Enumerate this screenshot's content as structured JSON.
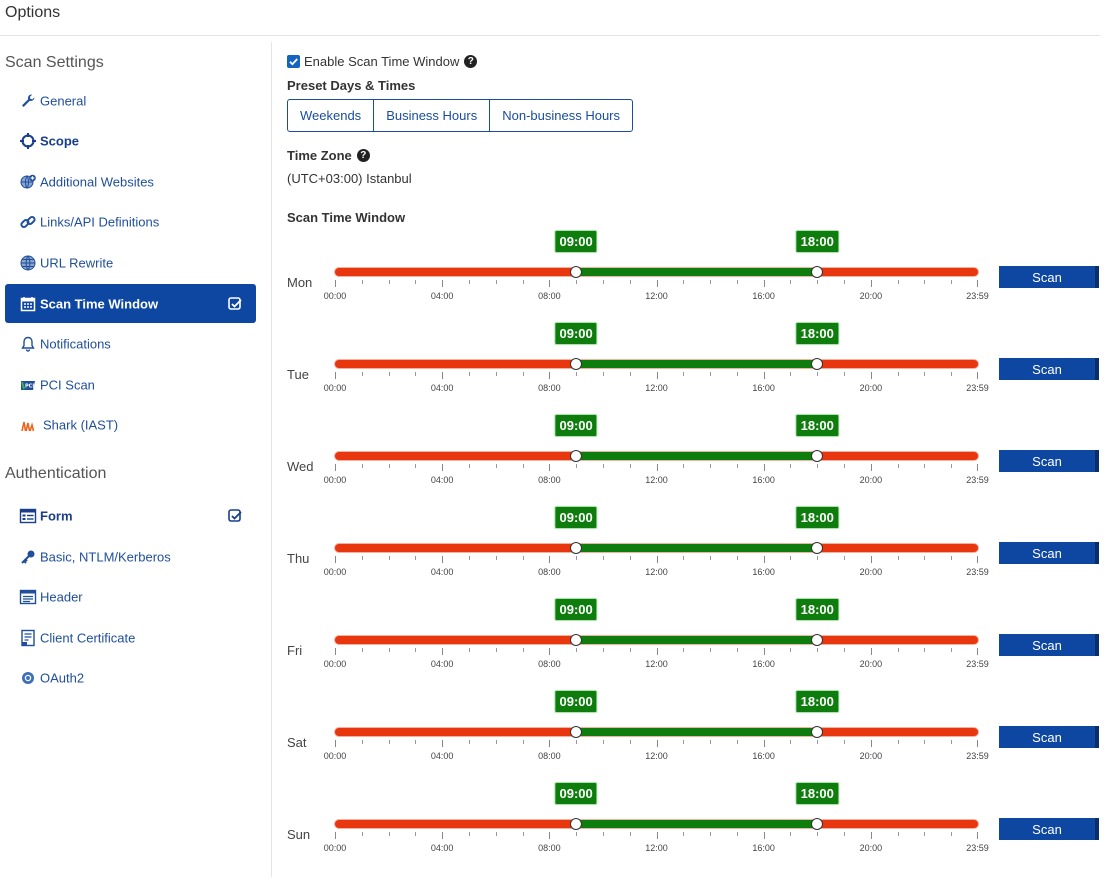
{
  "header": {
    "title": "Options"
  },
  "sidebar": {
    "scan_settings_title": "Scan Settings",
    "authentication_title": "Authentication",
    "scan_items": [
      {
        "label": "General",
        "icon": "wrench-icon"
      },
      {
        "label": "Scope",
        "icon": "crosshair-icon"
      },
      {
        "label": "Additional Websites",
        "icon": "globe-plus-icon"
      },
      {
        "label": "Links/API Definitions",
        "icon": "link-icon"
      },
      {
        "label": "URL Rewrite",
        "icon": "globe-icon"
      },
      {
        "label": "Scan Time Window",
        "icon": "calendar-icon"
      },
      {
        "label": "Notifications",
        "icon": "bell-icon"
      },
      {
        "label": "PCI Scan",
        "icon": "pci-icon"
      },
      {
        "label": "Shark (IAST)",
        "icon": "shark-icon"
      }
    ],
    "auth_items": [
      {
        "label": "Form",
        "icon": "form-icon"
      },
      {
        "label": "Basic, NTLM/Kerberos",
        "icon": "key-icon"
      },
      {
        "label": "Header",
        "icon": "header-icon"
      },
      {
        "label": "Client Certificate",
        "icon": "certificate-icon"
      },
      {
        "label": "OAuth2",
        "icon": "oauth-icon"
      }
    ]
  },
  "main": {
    "enable_label": "Enable Scan Time Window",
    "enable_checked": true,
    "preset_title": "Preset Days & Times",
    "presets": [
      "Weekends",
      "Business Hours",
      "Non-business Hours"
    ],
    "timezone_title": "Time Zone",
    "timezone_value": "(UTC+03:00) Istanbul",
    "window_title": "Scan Time Window",
    "tick_labels": [
      "00:00",
      "04:00",
      "08:00",
      "12:00",
      "16:00",
      "20:00",
      "23:59"
    ],
    "scan_label": "Scan",
    "days": [
      {
        "day": "Mon",
        "start": "09:00",
        "end": "18:00",
        "start_hour": 9,
        "end_hour": 18
      },
      {
        "day": "Tue",
        "start": "09:00",
        "end": "18:00",
        "start_hour": 9,
        "end_hour": 18
      },
      {
        "day": "Wed",
        "start": "09:00",
        "end": "18:00",
        "start_hour": 9,
        "end_hour": 18
      },
      {
        "day": "Thu",
        "start": "09:00",
        "end": "18:00",
        "start_hour": 9,
        "end_hour": 18
      },
      {
        "day": "Fri",
        "start": "09:00",
        "end": "18:00",
        "start_hour": 9,
        "end_hour": 18
      },
      {
        "day": "Sat",
        "start": "09:00",
        "end": "18:00",
        "start_hour": 9,
        "end_hour": 18
      },
      {
        "day": "Sun",
        "start": "09:00",
        "end": "18:00",
        "start_hour": 9,
        "end_hour": 18
      }
    ]
  },
  "colors": {
    "accent": "#0d47a1",
    "allowed": "#0e7d0e",
    "blocked": "#e8360e"
  }
}
